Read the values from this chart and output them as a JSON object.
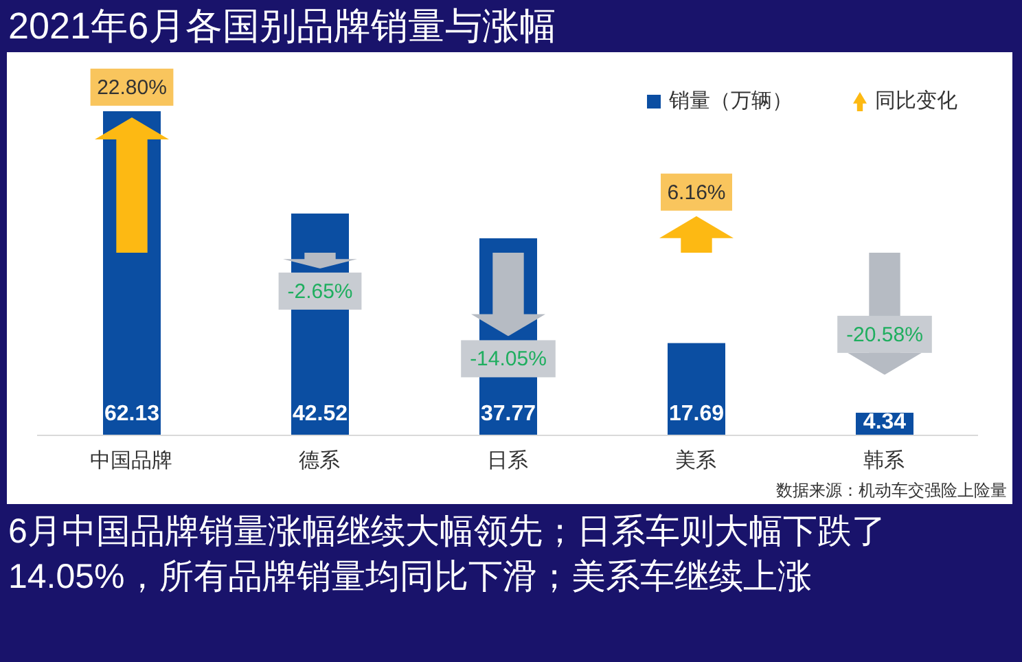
{
  "chart_data": {
    "type": "bar",
    "title": "2021年6月各国别品牌销量与涨幅",
    "categories": [
      "中国品牌",
      "德系",
      "日系",
      "美系",
      "韩系"
    ],
    "series": [
      {
        "name": "销量（万辆）",
        "color": "#0b4ea2",
        "values": [
          62.13,
          42.52,
          37.77,
          17.69,
          4.34
        ],
        "value_labels": [
          "62.13",
          "42.52",
          "37.77",
          "17.69",
          "4.34"
        ]
      },
      {
        "name": "同比变化",
        "axis": "y2",
        "color": "#fdb913",
        "colors": [
          "#fdb913",
          "#b6bbc3",
          "#b6bbc3",
          "#fdb913",
          "#b6bbc3"
        ],
        "values": [
          22.8,
          -2.65,
          -14.05,
          6.16,
          -20.58
        ],
        "value_labels": [
          "22.80%",
          "-2.65%",
          "-14.05%",
          "6.16%",
          "-20.58%"
        ]
      }
    ],
    "tick_labels": "x",
    "legend": "top right",
    "annotations": [
      "数据来源：机动车交强险上险量",
      "6月中国品牌销量涨幅继续大幅领先；日系车则大幅下跌了14.05%，所有品牌销量均同比下滑；美系车继续上涨"
    ]
  }
}
